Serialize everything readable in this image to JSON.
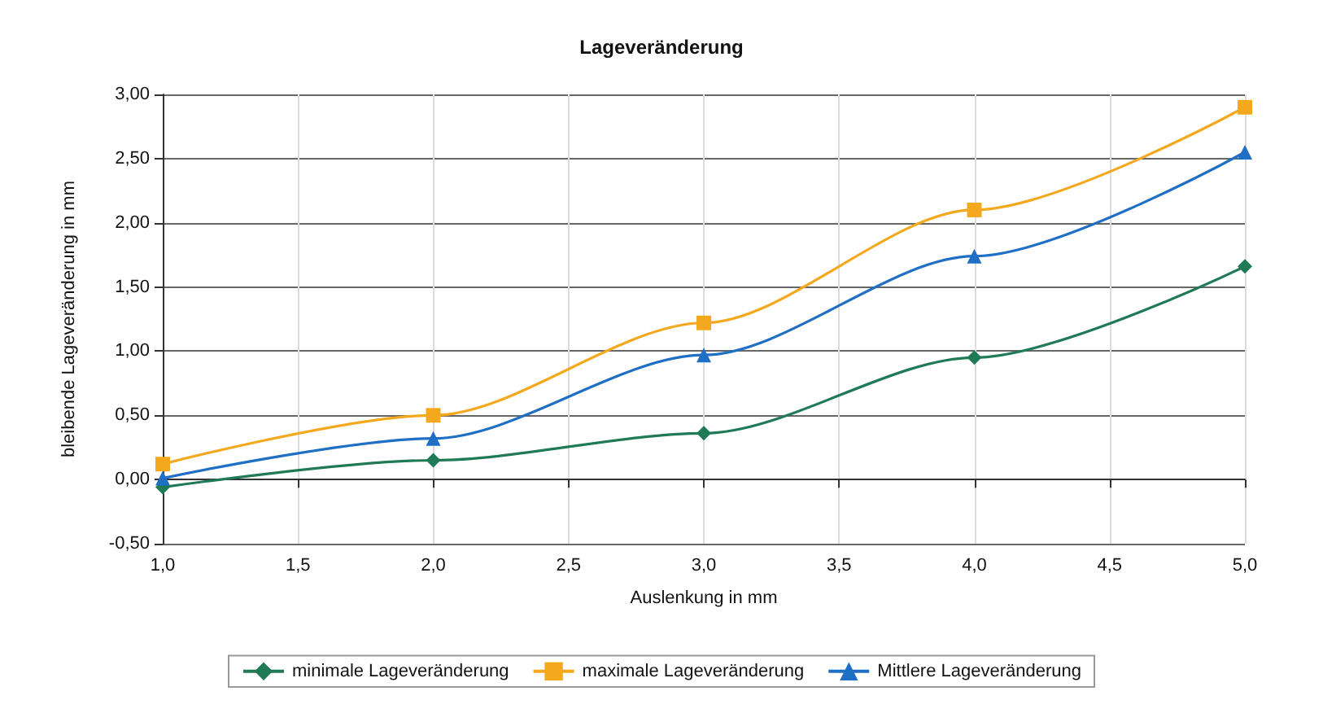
{
  "chart_data": {
    "type": "line",
    "title": "Lageveränderung",
    "xlabel": "Auslenkung in mm",
    "ylabel": "bleibende Lageveränderung in mm",
    "x": [
      1.0,
      2.0,
      3.0,
      4.0,
      5.0
    ],
    "series": [
      {
        "name": "minimale Lageveränderung",
        "color": "#1f7a55",
        "marker": "diamond",
        "values": [
          -0.06,
          0.15,
          0.36,
          0.95,
          1.66
        ]
      },
      {
        "name": "maximale Lageveränderung",
        "color": "#f4a81d",
        "marker": "square",
        "values": [
          0.12,
          0.5,
          1.22,
          2.1,
          2.9
        ]
      },
      {
        "name": "Mittlere Lageveränderung",
        "color": "#1f6fc5",
        "marker": "triangle",
        "values": [
          0.01,
          0.32,
          0.97,
          1.74,
          2.55
        ]
      }
    ],
    "xlim": [
      1.0,
      5.0
    ],
    "xticks": [
      {
        "value": 1,
        "label": "1,0"
      },
      {
        "value": 1.5,
        "label": "1,5"
      },
      {
        "value": 2,
        "label": "2,0"
      },
      {
        "value": 2.5,
        "label": "2,5"
      },
      {
        "value": 3,
        "label": "3,0"
      },
      {
        "value": 3.5,
        "label": "3,5"
      },
      {
        "value": 4,
        "label": "4,0"
      },
      {
        "value": 4.5,
        "label": "4,5"
      },
      {
        "value": 5,
        "label": "5,0"
      }
    ],
    "ylim": [
      -0.5,
      3.0
    ],
    "yticks": [
      {
        "value": -0.5,
        "label": "-0,50"
      },
      {
        "value": 0,
        "label": "0,00"
      },
      {
        "value": 0.5,
        "label": "0,50"
      },
      {
        "value": 1,
        "label": "1,00"
      },
      {
        "value": 1.5,
        "label": "1,50"
      },
      {
        "value": 2,
        "label": "2,00"
      },
      {
        "value": 2.5,
        "label": "2,50"
      },
      {
        "value": 3,
        "label": "3,00"
      }
    ],
    "grid": true,
    "legend": "bottom"
  }
}
